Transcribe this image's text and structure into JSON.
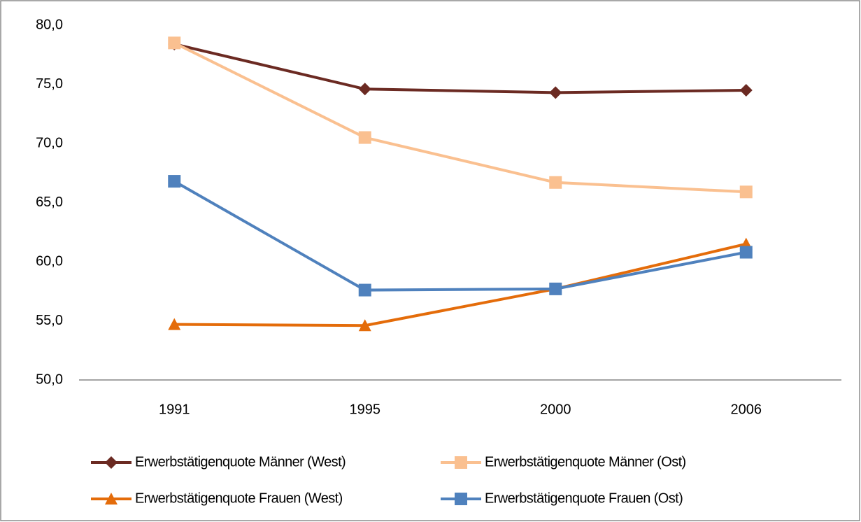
{
  "chart_data": {
    "type": "line",
    "categories": [
      "1991",
      "1995",
      "2000",
      "2006"
    ],
    "series": [
      {
        "name": "Erwerbstätigenquote Männer (West)",
        "color": "#6b2a22",
        "marker": "diamond",
        "values": [
          78.4,
          74.6,
          74.3,
          74.5
        ]
      },
      {
        "name": "Erwerbstätigenquote Männer (Ost)",
        "color": "#fac090",
        "marker": "square",
        "values": [
          78.5,
          70.5,
          66.7,
          65.9
        ]
      },
      {
        "name": "Erwerbstätigenquote Frauen (West)",
        "color": "#e46c0a",
        "marker": "triangle",
        "values": [
          54.7,
          54.6,
          57.7,
          61.5
        ]
      },
      {
        "name": "Erwerbstätigenquote Frauen (Ost)",
        "color": "#4f81bd",
        "marker": "square",
        "values": [
          66.8,
          57.6,
          57.7,
          60.8
        ]
      }
    ],
    "ylim": [
      50,
      80
    ],
    "yticks": [
      {
        "value": 50,
        "label": "50,0"
      },
      {
        "value": 55,
        "label": "55,0"
      },
      {
        "value": 60,
        "label": "60,0"
      },
      {
        "value": 65,
        "label": "65,0"
      },
      {
        "value": 70,
        "label": "70,0"
      },
      {
        "value": 75,
        "label": "75,0"
      },
      {
        "value": 80,
        "label": "80,0"
      }
    ],
    "grid": false,
    "legend": "bottom"
  }
}
